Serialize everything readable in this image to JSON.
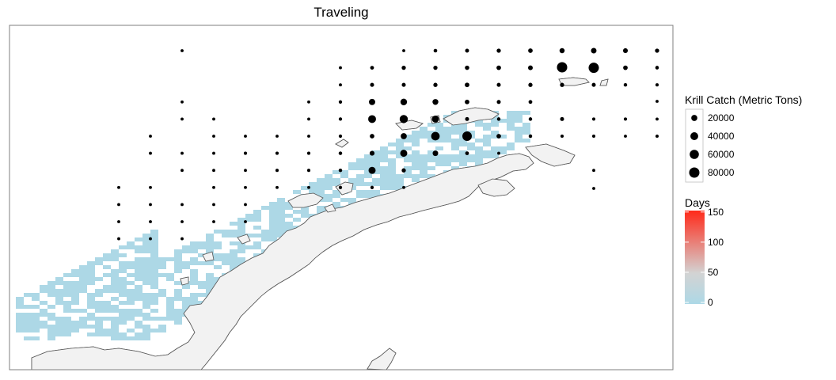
{
  "title": "Traveling",
  "colors": {
    "grid_cell": "#add8e6",
    "land": "#f2f2f2",
    "coastline": "#555555",
    "catch_point": "#000000",
    "days_low": "#add8e6",
    "days_mid": "#d3d3d3",
    "days_high": "#ff2a1a"
  },
  "legend": {
    "size": {
      "title": "Krill Catch (Metric Tons)",
      "entries": [
        {
          "label": "20000",
          "value": 20000
        },
        {
          "label": "40000",
          "value": 40000
        },
        {
          "label": "60000",
          "value": 60000
        },
        {
          "label": "80000",
          "value": 80000
        }
      ]
    },
    "color": {
      "title": "Days",
      "ticks": [
        {
          "label": "150",
          "value": 150
        },
        {
          "label": "100",
          "value": 100
        },
        {
          "label": "50",
          "value": 50
        },
        {
          "label": "0",
          "value": 0
        }
      ],
      "range": [
        0,
        155
      ]
    }
  },
  "catch_points": {
    "rows": [
      {
        "r": 1,
        "c": [
          0,
          12,
          14,
          15,
          16,
          17,
          18,
          19,
          20,
          21,
          22,
          23,
          24,
          25,
          26,
          27,
          28,
          29,
          30,
          31,
          32,
          33,
          34,
          35,
          36,
          37,
          38,
          39,
          40,
          41,
          42,
          43,
          44,
          45
        ]
      },
      {
        "r": 2,
        "c": [
          0,
          12,
          14,
          15,
          16,
          17,
          18,
          19,
          20,
          21,
          22,
          23,
          24,
          25,
          26,
          27,
          28,
          29,
          30,
          31,
          32,
          33,
          34,
          35,
          36,
          37,
          38,
          39,
          40,
          41,
          42,
          43,
          44,
          45
        ]
      }
    ],
    "points": [
      {
        "row": 0,
        "col": 5,
        "catch": 1500
      },
      {
        "row": 0,
        "col": 12,
        "catch": 1500
      },
      {
        "row": 0,
        "col": 13,
        "catch": 3500
      },
      {
        "row": 0,
        "col": 14,
        "catch": 4500
      },
      {
        "row": 0,
        "col": 15,
        "catch": 6000
      },
      {
        "row": 0,
        "col": 16,
        "catch": 8000
      },
      {
        "row": 0,
        "col": 17,
        "catch": 12000
      },
      {
        "row": 0,
        "col": 18,
        "catch": 15000
      },
      {
        "row": 0,
        "col": 19,
        "catch": 10000
      },
      {
        "row": 0,
        "col": 20,
        "catch": 6000
      },
      {
        "row": 0,
        "col": 21,
        "catch": 5000
      },
      {
        "row": 1,
        "col": 10,
        "catch": 1500
      },
      {
        "row": 1,
        "col": 11,
        "catch": 4000
      },
      {
        "row": 1,
        "col": 12,
        "catch": 6000
      },
      {
        "row": 1,
        "col": 13,
        "catch": 6000
      },
      {
        "row": 1,
        "col": 14,
        "catch": 7000
      },
      {
        "row": 1,
        "col": 15,
        "catch": 8000
      },
      {
        "row": 1,
        "col": 16,
        "catch": 9000
      },
      {
        "row": 1,
        "col": 17,
        "catch": 15000
      },
      {
        "row": 1,
        "col": 18,
        "catch": 80000
      },
      {
        "row": 1,
        "col": 19,
        "catch": 8000
      },
      {
        "row": 1,
        "col": 20,
        "catch": 3000
      },
      {
        "row": 1,
        "col": 21,
        "catch": 2000
      },
      {
        "row": 2,
        "col": 10,
        "catch": 1500
      },
      {
        "row": 2,
        "col": 11,
        "catch": 5000
      },
      {
        "row": 2,
        "col": 12,
        "catch": 5000
      },
      {
        "row": 2,
        "col": 13,
        "catch": 6000
      },
      {
        "row": 2,
        "col": 14,
        "catch": 8000
      },
      {
        "row": 2,
        "col": 15,
        "catch": 5000
      },
      {
        "row": 2,
        "col": 16,
        "catch": 6000
      },
      {
        "row": 2,
        "col": 17,
        "catch": 6000
      },
      {
        "row": 2,
        "col": 18,
        "catch": 5000
      },
      {
        "row": 2,
        "col": 19,
        "catch": 3000
      },
      {
        "row": 2,
        "col": 20,
        "catch": 2000
      },
      {
        "row": 2,
        "col": 21,
        "catch": 2500
      },
      {
        "row": 3,
        "col": 5,
        "catch": 1500
      },
      {
        "row": 3,
        "col": 9,
        "catch": 1500
      },
      {
        "row": 3,
        "col": 10,
        "catch": 2500
      },
      {
        "row": 3,
        "col": 11,
        "catch": 22000
      },
      {
        "row": 3,
        "col": 12,
        "catch": 25000
      },
      {
        "row": 3,
        "col": 13,
        "catch": 18000
      },
      {
        "row": 3,
        "col": 14,
        "catch": 8000
      },
      {
        "row": 3,
        "col": 15,
        "catch": 5000
      },
      {
        "row": 3,
        "col": 16,
        "catch": 4000
      },
      {
        "row": 3,
        "col": 21,
        "catch": 2000
      },
      {
        "row": 4,
        "col": 5,
        "catch": 1500
      },
      {
        "row": 4,
        "col": 6,
        "catch": 1500
      },
      {
        "row": 4,
        "col": 9,
        "catch": 1500
      },
      {
        "row": 4,
        "col": 10,
        "catch": 2500
      },
      {
        "row": 4,
        "col": 11,
        "catch": 40000
      },
      {
        "row": 4,
        "col": 12,
        "catch": 45000
      },
      {
        "row": 4,
        "col": 13,
        "catch": 30000
      },
      {
        "row": 4,
        "col": 14,
        "catch": 5000
      },
      {
        "row": 4,
        "col": 15,
        "catch": 3000
      },
      {
        "row": 4,
        "col": 16,
        "catch": 3000
      },
      {
        "row": 4,
        "col": 17,
        "catch": 5000
      },
      {
        "row": 4,
        "col": 18,
        "catch": 2000
      },
      {
        "row": 4,
        "col": 19,
        "catch": 2000
      },
      {
        "row": 4,
        "col": 20,
        "catch": 1500
      },
      {
        "row": 5,
        "col": 4,
        "catch": 1500
      },
      {
        "row": 5,
        "col": 6,
        "catch": 1500
      },
      {
        "row": 5,
        "col": 7,
        "catch": 1500
      },
      {
        "row": 5,
        "col": 8,
        "catch": 1500
      },
      {
        "row": 5,
        "col": 9,
        "catch": 1500
      },
      {
        "row": 5,
        "col": 10,
        "catch": 2500
      },
      {
        "row": 5,
        "col": 11,
        "catch": 8000
      },
      {
        "row": 5,
        "col": 12,
        "catch": 20000
      },
      {
        "row": 5,
        "col": 13,
        "catch": 50000
      },
      {
        "row": 5,
        "col": 14,
        "catch": 65000
      },
      {
        "row": 5,
        "col": 15,
        "catch": 8000
      },
      {
        "row": 5,
        "col": 16,
        "catch": 3000
      },
      {
        "row": 5,
        "col": 17,
        "catch": 2000
      },
      {
        "row": 5,
        "col": 18,
        "catch": 2000
      },
      {
        "row": 5,
        "col": 19,
        "catch": 1500
      },
      {
        "row": 5,
        "col": 20,
        "catch": 1500
      },
      {
        "row": 6,
        "col": 4,
        "catch": 1500
      },
      {
        "row": 6,
        "col": 5,
        "catch": 1500
      },
      {
        "row": 6,
        "col": 6,
        "catch": 1500
      },
      {
        "row": 6,
        "col": 7,
        "catch": 2000
      },
      {
        "row": 6,
        "col": 8,
        "catch": 2000
      },
      {
        "row": 6,
        "col": 9,
        "catch": 2000
      },
      {
        "row": 6,
        "col": 10,
        "catch": 3000
      },
      {
        "row": 6,
        "col": 11,
        "catch": 10000
      },
      {
        "row": 6,
        "col": 12,
        "catch": 30000
      },
      {
        "row": 6,
        "col": 13,
        "catch": 15000
      },
      {
        "row": 6,
        "col": 14,
        "catch": 4000
      },
      {
        "row": 6,
        "col": 15,
        "catch": 1500
      },
      {
        "row": 7,
        "col": 5,
        "catch": 1500
      },
      {
        "row": 7,
        "col": 6,
        "catch": 1500
      },
      {
        "row": 7,
        "col": 7,
        "catch": 1500
      },
      {
        "row": 7,
        "col": 8,
        "catch": 2000
      },
      {
        "row": 7,
        "col": 9,
        "catch": 2000
      },
      {
        "row": 7,
        "col": 10,
        "catch": 3000
      },
      {
        "row": 7,
        "col": 11,
        "catch": 30000
      },
      {
        "row": 7,
        "col": 12,
        "catch": 6000
      },
      {
        "row": 7,
        "col": 18,
        "catch": 1500
      },
      {
        "row": 8,
        "col": 3,
        "catch": 1500
      },
      {
        "row": 8,
        "col": 4,
        "catch": 1500
      },
      {
        "row": 8,
        "col": 6,
        "catch": 1500
      },
      {
        "row": 8,
        "col": 7,
        "catch": 1500
      },
      {
        "row": 8,
        "col": 8,
        "catch": 1500
      },
      {
        "row": 8,
        "col": 9,
        "catch": 1500
      },
      {
        "row": 8,
        "col": 10,
        "catch": 2500
      },
      {
        "row": 8,
        "col": 11,
        "catch": 2500
      },
      {
        "row": 8,
        "col": 12,
        "catch": 1500
      },
      {
        "row": 9,
        "col": 3,
        "catch": 1500
      },
      {
        "row": 9,
        "col": 4,
        "catch": 1500
      },
      {
        "row": 9,
        "col": 5,
        "catch": 1500
      },
      {
        "row": 9,
        "col": 6,
        "catch": 1500
      },
      {
        "row": 9,
        "col": 7,
        "catch": 1500
      },
      {
        "row": 10,
        "col": 3,
        "catch": 1500
      },
      {
        "row": 10,
        "col": 4,
        "catch": 1500
      },
      {
        "row": 10,
        "col": 5,
        "catch": 1500
      },
      {
        "row": 10,
        "col": 6,
        "catch": 1500
      },
      {
        "row": 10,
        "col": 7,
        "catch": 1500
      },
      {
        "row": 11,
        "col": 3,
        "catch": 1500
      },
      {
        "row": 11,
        "col": 4,
        "catch": 1500
      },
      {
        "row": 11,
        "col": 5,
        "catch": 1500
      }
    ]
  }
}
